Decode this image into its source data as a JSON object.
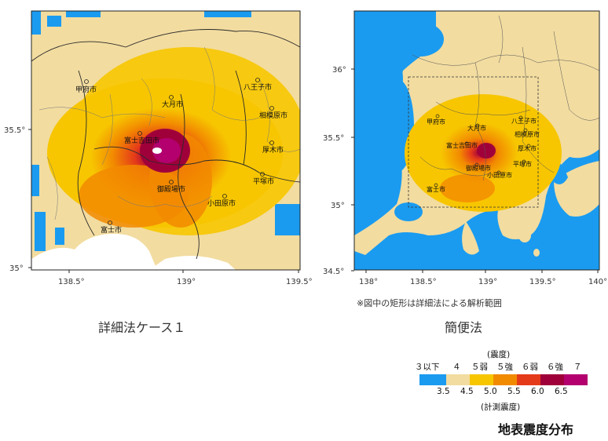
{
  "left_map": {
    "caption": "詳細法ケース１",
    "y_ticks": [
      "35.5°",
      "35°"
    ],
    "x_ticks": [
      "138.5°",
      "139°",
      "139.5°"
    ],
    "cities": [
      "甲府市",
      "八王子市",
      "大月市",
      "相模原市",
      "富士吉田市",
      "厚木市",
      "平塚市",
      "御殿場市",
      "小田原市",
      "富士市"
    ]
  },
  "right_map": {
    "caption": "簡便法",
    "note": "※図中の矩形は詳細法による解析範囲",
    "y_ticks": [
      "36°",
      "35.5°",
      "35°",
      "34.5°"
    ],
    "x_ticks": [
      "138°",
      "138.5°",
      "139°",
      "139.5°",
      "140°"
    ],
    "cities": [
      "甲府市",
      "大月市",
      "八王子市",
      "相模原市",
      "富士吉田市",
      "厚木市",
      "御殿場市",
      "平塚市",
      "小田原市",
      "富士市"
    ]
  },
  "legend": {
    "header": "(震度)",
    "intensity_labels": [
      "３以下",
      "４",
      "５弱",
      "５強",
      "６弱",
      "６強",
      "７"
    ],
    "colors": [
      "#1a9bf0",
      "#f2dca0",
      "#f7c600",
      "#f28a00",
      "#e53a1a",
      "#a0003a",
      "#b3006e"
    ],
    "measured_values": [
      "3.5",
      "4.5",
      "5.0",
      "5.5",
      "6.0",
      "6.5"
    ],
    "footer": "(計測震度)"
  },
  "title": "地表震度分布"
}
